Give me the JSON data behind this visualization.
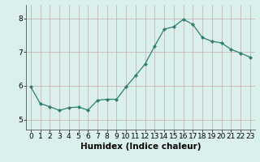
{
  "x": [
    0,
    1,
    2,
    3,
    4,
    5,
    6,
    7,
    8,
    9,
    10,
    11,
    12,
    13,
    14,
    15,
    16,
    17,
    18,
    19,
    20,
    21,
    22,
    23
  ],
  "y": [
    5.97,
    5.47,
    5.38,
    5.27,
    5.35,
    5.37,
    5.28,
    5.57,
    5.6,
    5.6,
    5.97,
    6.3,
    6.65,
    7.18,
    7.68,
    7.75,
    7.97,
    7.82,
    7.43,
    7.32,
    7.27,
    7.08,
    6.97,
    6.85
  ],
  "line_color": "#2e7d6e",
  "marker": "D",
  "marker_size": 2.2,
  "bg_color": "#d9f0ec",
  "grid_color": "#c8a8a8",
  "xlabel": "Humidex (Indice chaleur)",
  "xlabel_fontsize": 7.5,
  "yticks": [
    5,
    6,
    7,
    8
  ],
  "xticks": [
    0,
    1,
    2,
    3,
    4,
    5,
    6,
    7,
    8,
    9,
    10,
    11,
    12,
    13,
    14,
    15,
    16,
    17,
    18,
    19,
    20,
    21,
    22,
    23
  ],
  "ylim": [
    4.7,
    8.4
  ],
  "xlim": [
    -0.5,
    23.5
  ],
  "tick_fontsize": 6.5
}
